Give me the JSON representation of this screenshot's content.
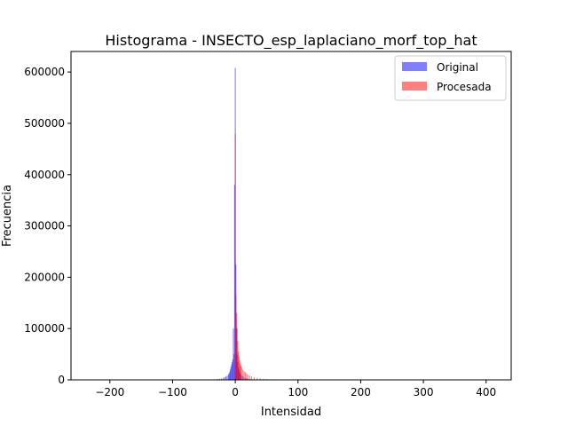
{
  "chart_data": {
    "type": "bar",
    "title": "Histograma - INSECTO_esp_laplaciano_morf_top_hat",
    "xlabel": "Intensidad",
    "ylabel": "Frecuencia",
    "xlim": [
      -262,
      440
    ],
    "ylim": [
      0,
      640000
    ],
    "xticks": [
      -200,
      -100,
      0,
      100,
      200,
      300,
      400
    ],
    "xtick_labels": [
      "−200",
      "−100",
      "0",
      "100",
      "200",
      "300",
      "400"
    ],
    "yticks": [
      0,
      100000,
      200000,
      300000,
      400000,
      500000,
      600000
    ],
    "ytick_labels": [
      "0",
      "100000",
      "200000",
      "300000",
      "400000",
      "500000",
      "600000"
    ],
    "legend_position": "top-right",
    "series": [
      {
        "name": "Original",
        "color": "#0000ff",
        "alpha": 0.5,
        "x": [
          -48,
          -40,
          -34,
          -29,
          -25,
          -22,
          -19,
          -17,
          -15,
          -13,
          -11,
          -10,
          -9,
          -8,
          -7,
          -6,
          -5,
          -4,
          -3,
          -2,
          -1,
          0,
          1,
          2,
          3,
          4,
          5,
          6,
          7,
          8,
          10,
          12,
          14,
          17,
          20,
          25,
          30,
          40,
          50
        ],
        "values": [
          300,
          600,
          1000,
          1500,
          2200,
          3000,
          4000,
          5000,
          6500,
          8000,
          10000,
          12500,
          15000,
          20000,
          25000,
          30000,
          35000,
          40000,
          100000,
          50000,
          380000,
          608000,
          225000,
          100000,
          50000,
          35000,
          25000,
          20000,
          15000,
          12000,
          9000,
          7000,
          5000,
          3500,
          2500,
          1500,
          800,
          300,
          100
        ]
      },
      {
        "name": "Procesada",
        "color": "#ff0000",
        "alpha": 0.5,
        "x": [
          -1,
          0,
          1,
          2,
          3,
          4,
          5,
          6,
          7,
          8,
          9,
          10,
          12,
          14,
          16,
          18,
          20,
          23,
          26,
          30,
          35,
          40,
          45,
          50,
          55,
          60,
          65,
          70,
          75,
          80
        ],
        "values": [
          2000,
          480000,
          165000,
          130000,
          100000,
          75000,
          55000,
          45000,
          38000,
          32000,
          28000,
          25000,
          20000,
          17000,
          15000,
          12000,
          10000,
          8500,
          7000,
          5500,
          4000,
          3000,
          2200,
          1600,
          1100,
          800,
          500,
          300,
          200,
          100
        ]
      }
    ]
  }
}
